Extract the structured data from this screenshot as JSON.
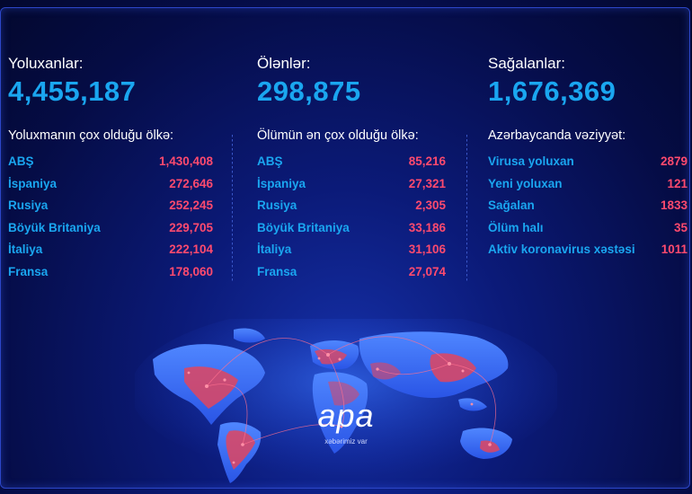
{
  "columns": [
    {
      "label": "Yoluxanlar:",
      "value": "4,455,187",
      "subtitle": "Yoluxmanın çox olduğu ölkə:",
      "rows": [
        {
          "name": "ABŞ",
          "value": "1,430,408"
        },
        {
          "name": "İspaniya",
          "value": "272,646"
        },
        {
          "name": "Rusiya",
          "value": "252,245"
        },
        {
          "name": "Böyük Britaniya",
          "value": "229,705"
        },
        {
          "name": "İtaliya",
          "value": "222,104"
        },
        {
          "name": "Fransa",
          "value": "178,060"
        }
      ]
    },
    {
      "label": "Ölənlər:",
      "value": "298,875",
      "subtitle": "Ölümün ən çox olduğu ölkə:",
      "rows": [
        {
          "name": "ABŞ",
          "value": "85,216"
        },
        {
          "name": "İspaniya",
          "value": "27,321"
        },
        {
          "name": "Rusiya",
          "value": "2,305"
        },
        {
          "name": "Böyük Britaniya",
          "value": "33,186"
        },
        {
          "name": "İtaliya",
          "value": "31,106"
        },
        {
          "name": "Fransa",
          "value": "27,074"
        }
      ]
    },
    {
      "label": "Sağalanlar:",
      "value": "1,676,369",
      "subtitle": "Azərbaycanda vəziyyət:",
      "rows": [
        {
          "name": "Virusa yoluxan",
          "value": "2879"
        },
        {
          "name": "Yeni yoluxan",
          "value": "121"
        },
        {
          "name": "Sağalan",
          "value": "1833"
        },
        {
          "name": "Ölüm halı",
          "value": "35"
        },
        {
          "name": "Aktiv koronavirus xəstəsi",
          "value": "1011"
        }
      ]
    }
  ],
  "logo": {
    "word": "apa",
    "tagline": "xəbərimiz var"
  },
  "colors": {
    "accent_blue": "#1aa6f0",
    "accent_red": "#ff4a6e",
    "background": "#0b1a78"
  }
}
